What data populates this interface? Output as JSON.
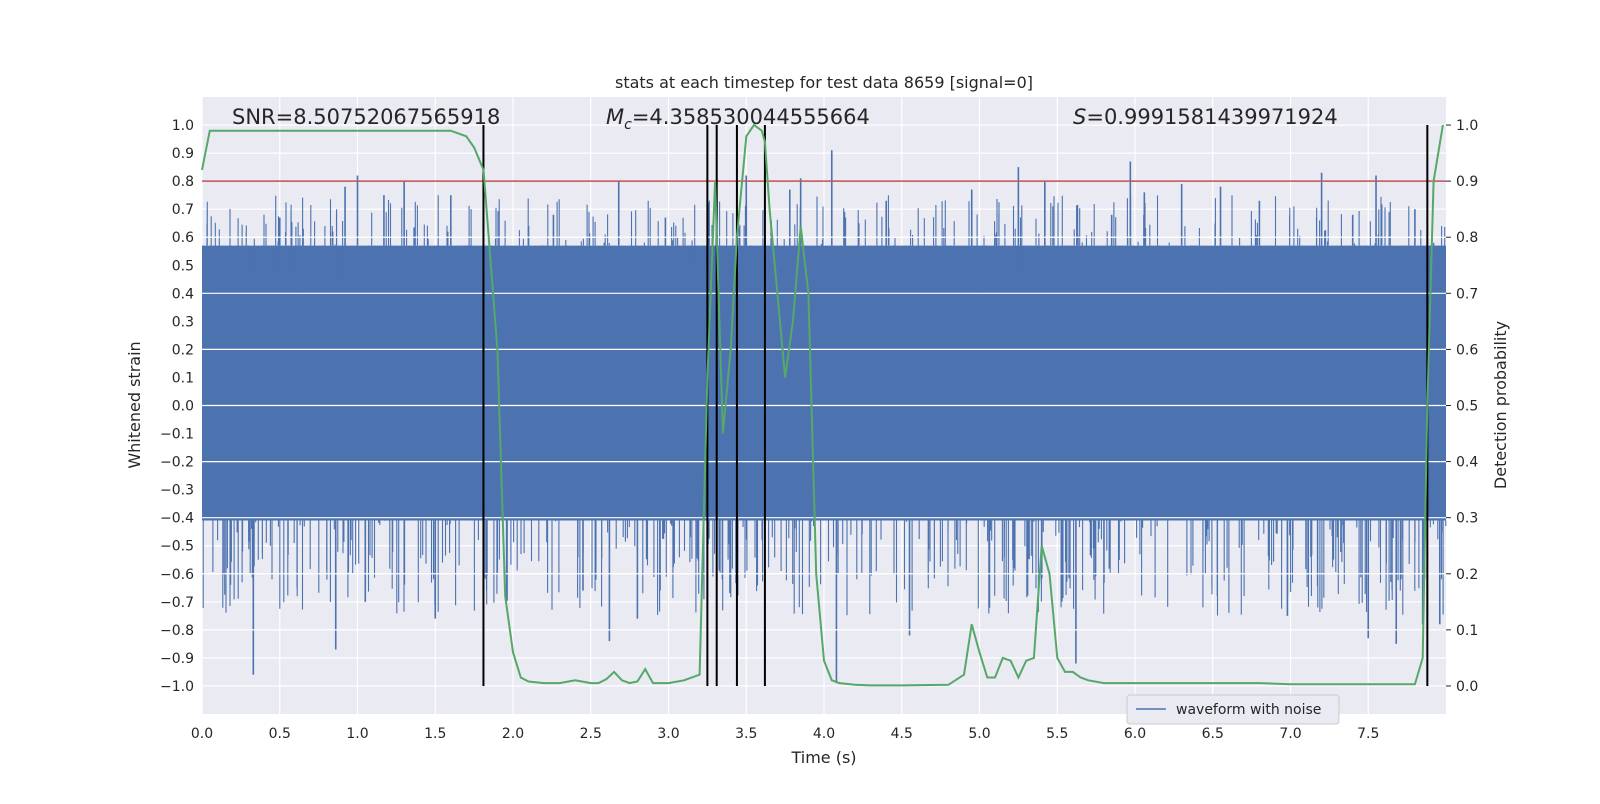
{
  "chart_data": {
    "type": "line",
    "title": "stats at each timestep for test data 8659 [signal=0]",
    "xlabel": "Time (s)",
    "ylabel_left": "Whitened strain",
    "ylabel_right": "Detection probability",
    "xlim": [
      0.0,
      8.0
    ],
    "ylim_left": [
      -1.1,
      1.1
    ],
    "ylim_right": [
      -0.05,
      1.05
    ],
    "x_ticks": [
      "0.0",
      "0.5",
      "1.0",
      "1.5",
      "2.0",
      "2.5",
      "3.0",
      "3.5",
      "4.0",
      "4.5",
      "5.0",
      "5.5",
      "6.0",
      "6.5",
      "7.0",
      "7.5"
    ],
    "y_left_ticks": [
      "1.0",
      "0.9",
      "0.8",
      "0.7",
      "0.6",
      "0.5",
      "0.4",
      "0.3",
      "0.2",
      "0.1",
      "0.0",
      "-0.1",
      "-0.2",
      "-0.3",
      "-0.4",
      "-0.5",
      "-0.6",
      "-0.7",
      "-0.8",
      "-0.9",
      "-1.0"
    ],
    "y_right_ticks": [
      "1.0",
      "0.9",
      "0.8",
      "0.7",
      "0.6",
      "0.5",
      "0.4",
      "0.3",
      "0.2",
      "0.1",
      "0.0"
    ],
    "grid": true,
    "legend": {
      "position": "lower-right",
      "entries": [
        {
          "label": "waveform with noise",
          "color": "#4c72b0"
        }
      ]
    },
    "annotations": {
      "snr": "SNR=8.50752067565918",
      "mc_symbol": "M",
      "mc_sub": "c",
      "mc_value": "=4.358530044555664",
      "s_symbol": "S",
      "s_value": "=0.9991581439971924"
    },
    "threshold_line": {
      "y": 0.9,
      "axis": "right",
      "color": "#c44e52"
    },
    "vertical_lines": {
      "x": [
        1.81,
        3.25,
        3.31,
        3.44,
        3.62,
        7.88
      ],
      "color": "#000000"
    },
    "waveform": {
      "name": "waveform with noise",
      "color": "#4c72b0",
      "band": [
        -0.41,
        0.57
      ],
      "spikes": [
        {
          "x": 0.33,
          "y": -0.96
        },
        {
          "x": 0.5,
          "y": 0.67
        },
        {
          "x": 0.65,
          "y": 0.63
        },
        {
          "x": 0.84,
          "y": 0.62
        },
        {
          "x": 0.86,
          "y": -0.87
        },
        {
          "x": 0.92,
          "y": 0.78
        },
        {
          "x": 1.0,
          "y": 0.82
        },
        {
          "x": 1.05,
          "y": -0.7
        },
        {
          "x": 1.17,
          "y": 0.75
        },
        {
          "x": 1.3,
          "y": 0.8
        },
        {
          "x": 1.5,
          "y": -0.76
        },
        {
          "x": 1.58,
          "y": 0.62
        },
        {
          "x": 1.6,
          "y": 0.75
        },
        {
          "x": 2.1,
          "y": 0.64
        },
        {
          "x": 2.26,
          "y": 0.68
        },
        {
          "x": 2.45,
          "y": -0.66
        },
        {
          "x": 2.62,
          "y": -0.84
        },
        {
          "x": 2.68,
          "y": 0.8
        },
        {
          "x": 2.8,
          "y": -0.76
        },
        {
          "x": 2.98,
          "y": 0.67
        },
        {
          "x": 3.5,
          "y": 0.82
        },
        {
          "x": 3.62,
          "y": 0.7
        },
        {
          "x": 3.66,
          "y": 0.66
        },
        {
          "x": 3.78,
          "y": 0.77
        },
        {
          "x": 3.85,
          "y": 0.81
        },
        {
          "x": 4.05,
          "y": 0.91
        },
        {
          "x": 4.08,
          "y": -0.99
        },
        {
          "x": 4.4,
          "y": 0.73
        },
        {
          "x": 4.55,
          "y": -0.82
        },
        {
          "x": 4.95,
          "y": 0.77
        },
        {
          "x": 5.1,
          "y": 0.61
        },
        {
          "x": 5.25,
          "y": 0.85
        },
        {
          "x": 5.42,
          "y": 0.8
        },
        {
          "x": 5.62,
          "y": -0.92
        },
        {
          "x": 5.85,
          "y": 0.68
        },
        {
          "x": 5.97,
          "y": 0.87
        },
        {
          "x": 6.06,
          "y": 0.76
        },
        {
          "x": 6.3,
          "y": 0.79
        },
        {
          "x": 6.55,
          "y": 0.78
        },
        {
          "x": 6.8,
          "y": 0.73
        },
        {
          "x": 6.98,
          "y": -0.75
        },
        {
          "x": 7.2,
          "y": 0.83
        },
        {
          "x": 7.4,
          "y": 0.68
        },
        {
          "x": 7.5,
          "y": -0.83
        },
        {
          "x": 7.55,
          "y": 0.82
        },
        {
          "x": 7.68,
          "y": -0.85
        },
        {
          "x": 7.8,
          "y": 0.7
        },
        {
          "x": 7.85,
          "y": -0.78
        },
        {
          "x": 7.92,
          "y": 0.58
        },
        {
          "x": 7.96,
          "y": -0.78
        }
      ]
    },
    "series": [
      {
        "color": "#55a868",
        "axis": "right",
        "x": [
          0.0,
          0.05,
          0.2,
          0.5,
          1.0,
          1.4,
          1.6,
          1.7,
          1.75,
          1.81,
          1.9,
          1.95,
          2.0,
          2.05,
          2.1,
          2.2,
          2.3,
          2.4,
          2.5,
          2.55,
          2.6,
          2.65,
          2.7,
          2.75,
          2.8,
          2.85,
          2.9,
          3.0,
          3.1,
          3.2,
          3.25,
          3.3,
          3.35,
          3.4,
          3.44,
          3.5,
          3.55,
          3.6,
          3.62,
          3.65,
          3.7,
          3.75,
          3.8,
          3.85,
          3.9,
          3.95,
          4.0,
          4.05,
          4.1,
          4.2,
          4.3,
          4.5,
          4.8,
          4.9,
          4.95,
          5.0,
          5.05,
          5.1,
          5.15,
          5.2,
          5.25,
          5.3,
          5.35,
          5.4,
          5.45,
          5.5,
          5.55,
          5.6,
          5.65,
          5.7,
          5.8,
          6.0,
          6.2,
          6.4,
          6.6,
          6.8,
          7.0,
          7.3,
          7.5,
          7.6,
          7.8,
          7.85,
          7.88,
          7.92,
          7.98
        ],
        "y": [
          0.92,
          0.99,
          0.99,
          0.99,
          0.99,
          0.99,
          0.99,
          0.98,
          0.96,
          0.92,
          0.6,
          0.16,
          0.06,
          0.015,
          0.008,
          0.005,
          0.005,
          0.01,
          0.005,
          0.005,
          0.012,
          0.025,
          0.01,
          0.005,
          0.008,
          0.03,
          0.005,
          0.005,
          0.01,
          0.02,
          0.55,
          0.9,
          0.45,
          0.6,
          0.8,
          0.98,
          1.0,
          0.99,
          0.97,
          0.85,
          0.7,
          0.55,
          0.65,
          0.82,
          0.7,
          0.2,
          0.045,
          0.01,
          0.005,
          0.002,
          0.001,
          0.001,
          0.002,
          0.02,
          0.11,
          0.06,
          0.015,
          0.015,
          0.05,
          0.045,
          0.015,
          0.045,
          0.05,
          0.25,
          0.2,
          0.05,
          0.025,
          0.025,
          0.015,
          0.01,
          0.005,
          0.005,
          0.005,
          0.005,
          0.005,
          0.005,
          0.003,
          0.003,
          0.003,
          0.003,
          0.003,
          0.05,
          0.5,
          0.9,
          1.0
        ]
      }
    ]
  }
}
